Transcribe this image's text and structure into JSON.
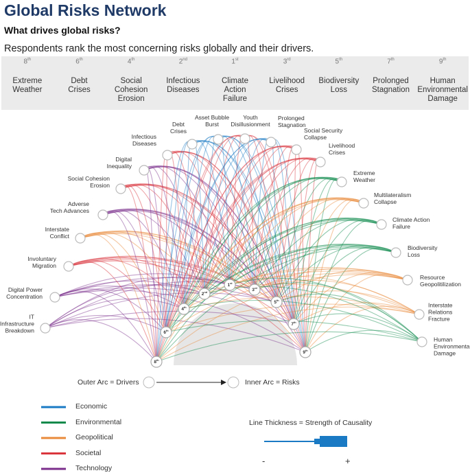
{
  "header": {
    "title": "Global Risks Network",
    "subtitle": "What drives global risks?",
    "description": "Respondents rank the most concerning risks globally and their drivers."
  },
  "ranking": {
    "columns": [
      {
        "rank": "8",
        "suffix": "th",
        "name": "Extreme\nWeather"
      },
      {
        "rank": "6",
        "suffix": "th",
        "name": "Debt\nCrises"
      },
      {
        "rank": "4",
        "suffix": "th",
        "name": "Social\nCohesion\nErosion"
      },
      {
        "rank": "2",
        "suffix": "nd",
        "name": "Infectious\nDiseases"
      },
      {
        "rank": "1",
        "suffix": "st",
        "name": "Climate\nAction\nFailure"
      },
      {
        "rank": "3",
        "suffix": "rd",
        "name": "Livelihood\nCrises"
      },
      {
        "rank": "5",
        "suffix": "th",
        "name": "Biodiversity\nLoss"
      },
      {
        "rank": "7",
        "suffix": "th",
        "name": "Prolonged\nStagnation"
      },
      {
        "rank": "9",
        "suffix": "th",
        "name": "Human\nEnvironmental\nDamage"
      }
    ]
  },
  "network": {
    "drivers": [
      {
        "label": "IT\nInfrastructure\nBreakdown",
        "color": "#7b2e8c"
      },
      {
        "label": "Digital Power\nConcentration",
        "color": "#7b2e8c"
      },
      {
        "label": "Involuntary\nMigration",
        "color": "#d9363e"
      },
      {
        "label": "Interstate\nConflict",
        "color": "#e98a3a"
      },
      {
        "label": "Adverse\nTech Advances",
        "color": "#7b2e8c"
      },
      {
        "label": "Social Cohesion\nErosion",
        "color": "#d9363e"
      },
      {
        "label": "Digital\nInequality",
        "color": "#7b2e8c"
      },
      {
        "label": "Infectious\nDiseases",
        "color": "#d9363e"
      },
      {
        "label": "Debt\nCrises",
        "color": "#1a7ac4"
      },
      {
        "label": "Asset Bubble\nBurst",
        "color": "#1a7ac4"
      },
      {
        "label": "Youth\nDisillusionment",
        "color": "#d9363e"
      },
      {
        "label": "Prolonged\nStagnation",
        "color": "#1a7ac4"
      },
      {
        "label": "Social Security\nCollapse",
        "color": "#d9363e"
      },
      {
        "label": "Livelihood\nCrises",
        "color": "#d9363e"
      },
      {
        "label": "Extreme\nWeather",
        "color": "#0e8a4b"
      },
      {
        "label": "Multilateralism\nCollapse",
        "color": "#e98a3a"
      },
      {
        "label": "Climate Action\nFailure",
        "color": "#0e8a4b"
      },
      {
        "label": "Biodiversity\nLoss",
        "color": "#0e8a4b"
      },
      {
        "label": "Resource\nGeopolitilization",
        "color": "#e98a3a"
      },
      {
        "label": "Interstate\nRelations\nFracture",
        "color": "#e98a3a"
      },
      {
        "label": "Human\nEnvironmental\nDamage",
        "color": "#0e8a4b"
      }
    ],
    "risks": [
      {
        "rank": "8",
        "suffix": "th"
      },
      {
        "rank": "6",
        "suffix": "th"
      },
      {
        "rank": "4",
        "suffix": "th"
      },
      {
        "rank": "2",
        "suffix": "nd"
      },
      {
        "rank": "1",
        "suffix": "st"
      },
      {
        "rank": "3",
        "suffix": "rd"
      },
      {
        "rank": "5",
        "suffix": "th"
      },
      {
        "rank": "7",
        "suffix": "th"
      },
      {
        "rank": "9",
        "suffix": "th"
      }
    ],
    "outer_label": "Outer Arc = Drivers",
    "inner_label": "Inner Arc = Risks"
  },
  "legend": {
    "items": [
      {
        "name": "Economic",
        "color": "#1a7ac4"
      },
      {
        "name": "Environmental",
        "color": "#0e8a4b"
      },
      {
        "name": "Geopolitical",
        "color": "#e98a3a"
      },
      {
        "name": "Societal",
        "color": "#d9363e"
      },
      {
        "name": "Technology",
        "color": "#7b2e8c"
      }
    ],
    "thickness_title": "Line Thickness = Strength of Causality",
    "min_label": "-",
    "max_label": "+"
  }
}
